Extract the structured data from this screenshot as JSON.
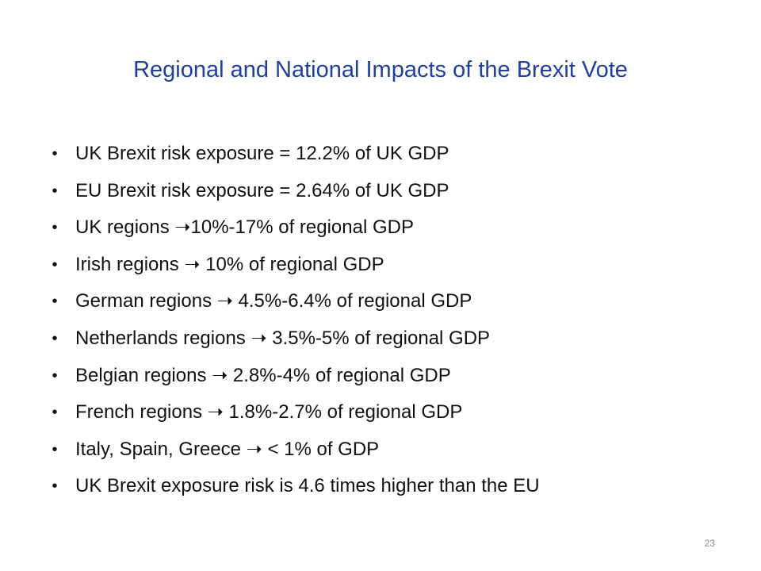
{
  "slide": {
    "title": "Regional and National Impacts of the Brexit Vote",
    "bullet_glyph": "•",
    "bullets": [
      "UK Brexit risk exposure = 12.2% of UK GDP",
      "EU Brexit risk exposure = 2.64% of UK GDP",
      "UK regions ➝10%-17% of regional GDP",
      "Irish regions ➝ 10% of regional GDP",
      "German regions ➝ 4.5%-6.4% of regional GDP",
      "Netherlands regions ➝ 3.5%-5% of regional GDP",
      "Belgian regions ➝ 2.8%-4% of regional GDP",
      "French regions ➝ 1.8%-2.7% of regional GDP",
      "Italy, Spain, Greece ➝  < 1% of GDP",
      "UK Brexit exposure risk is 4.6 times higher than the EU"
    ],
    "page_number": "23"
  }
}
